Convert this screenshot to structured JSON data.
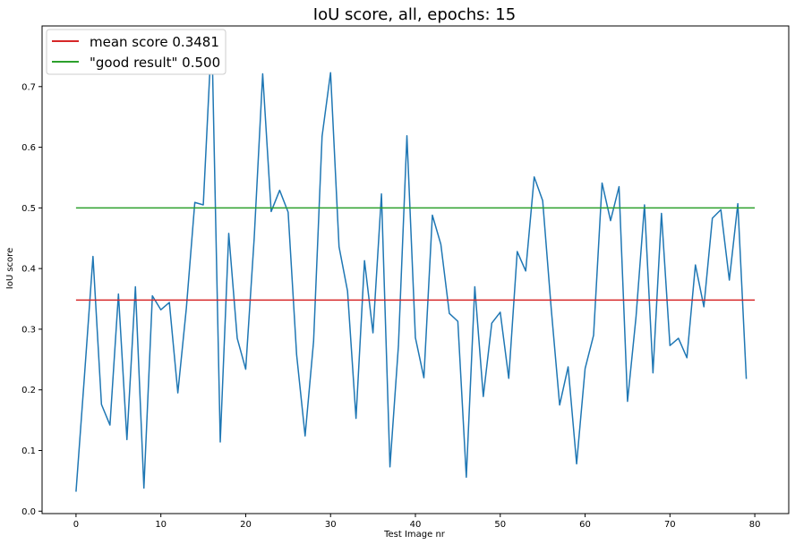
{
  "chart_data": {
    "type": "line",
    "title": "IoU score, all, epochs: 15",
    "xlabel": "Test Image nr",
    "ylabel": "IoU score",
    "xlim": [
      -4,
      84
    ],
    "ylim": [
      -0.004,
      0.8
    ],
    "xticks": [
      0,
      10,
      20,
      30,
      40,
      50,
      60,
      70,
      80
    ],
    "yticks": [
      0.0,
      0.1,
      0.2,
      0.3,
      0.4,
      0.5,
      0.6,
      0.7
    ],
    "ytick_labels": [
      "0.0",
      "0.1",
      "0.2",
      "0.3",
      "0.4",
      "0.5",
      "0.6",
      "0.7"
    ],
    "grid": false,
    "legend_position": "top-left",
    "series": [
      {
        "name": "mean score 0.3481",
        "color": "#d62728",
        "x": [
          0,
          80
        ],
        "values": [
          0.3481,
          0.3481
        ]
      },
      {
        "name": "\"good result\" 0.500",
        "color": "#2ca02c",
        "x": [
          0,
          80
        ],
        "values": [
          0.5,
          0.5
        ]
      },
      {
        "color": "#1f77b4",
        "x": [
          0,
          1,
          2,
          3,
          4,
          5,
          6,
          7,
          8,
          9,
          10,
          11,
          12,
          13,
          14,
          15,
          16,
          17,
          18,
          19,
          20,
          21,
          22,
          23,
          24,
          25,
          26,
          27,
          28,
          29,
          30,
          31,
          32,
          33,
          34,
          35,
          36,
          37,
          38,
          39,
          40,
          41,
          42,
          43,
          44,
          45,
          46,
          47,
          48,
          49,
          50,
          51,
          52,
          53,
          54,
          55,
          56,
          57,
          58,
          59,
          60,
          61,
          62,
          63,
          64,
          65,
          66,
          67,
          68,
          69,
          70,
          71,
          72,
          73,
          74,
          75,
          76,
          77,
          78,
          79
        ],
        "values": [
          0.032,
          0.224,
          0.42,
          0.176,
          0.142,
          0.358,
          0.118,
          0.37,
          0.038,
          0.355,
          0.332,
          0.344,
          0.195,
          0.334,
          0.509,
          0.505,
          0.79,
          0.114,
          0.458,
          0.285,
          0.234,
          0.45,
          0.721,
          0.494,
          0.529,
          0.493,
          0.258,
          0.124,
          0.28,
          0.618,
          0.723,
          0.436,
          0.363,
          0.153,
          0.413,
          0.294,
          0.523,
          0.073,
          0.273,
          0.619,
          0.286,
          0.22,
          0.488,
          0.44,
          0.326,
          0.313,
          0.056,
          0.37,
          0.189,
          0.31,
          0.328,
          0.219,
          0.428,
          0.396,
          0.551,
          0.512,
          0.335,
          0.175,
          0.238,
          0.078,
          0.235,
          0.29,
          0.541,
          0.479,
          0.535,
          0.181,
          0.32,
          0.505,
          0.228,
          0.491,
          0.273,
          0.285,
          0.253,
          0.406,
          0.337,
          0.483,
          0.497,
          0.381,
          0.507,
          0.218
        ]
      }
    ]
  }
}
